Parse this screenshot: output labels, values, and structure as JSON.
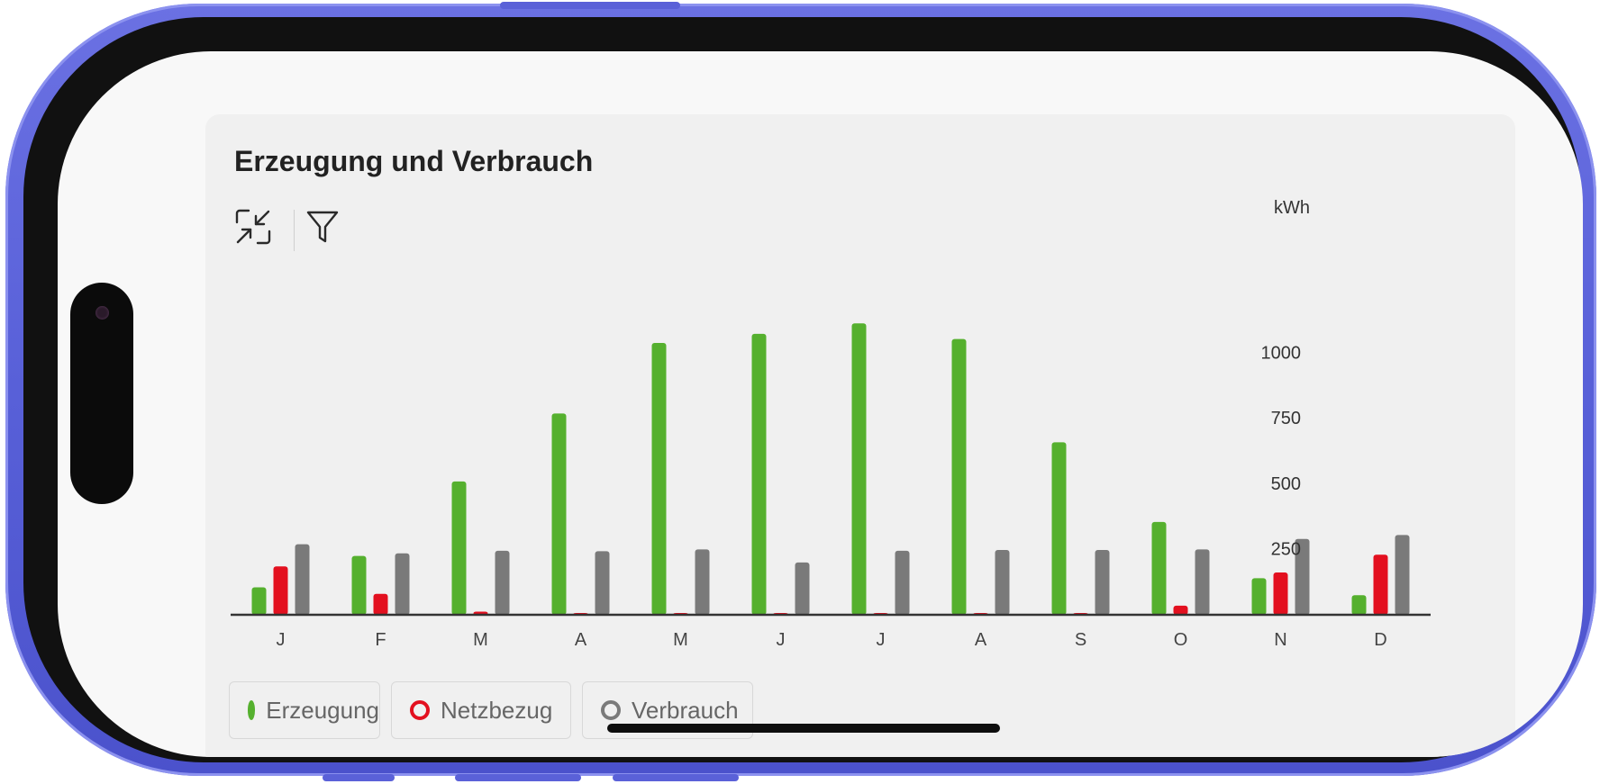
{
  "card": {
    "title": "Erzeugung und Verbrauch"
  },
  "toolbar": {
    "collapse_icon": "collapse-arrows-icon",
    "filter_icon": "filter-icon"
  },
  "legend": [
    {
      "label": "Erzeugung",
      "color": "#55b02e"
    },
    {
      "label": "Netzbezug",
      "color": "#e3101f"
    },
    {
      "label": "Verbrauch",
      "color": "#7a7a7a"
    }
  ],
  "chart_data": {
    "type": "bar",
    "ylabel": "kWh",
    "ylim": [
      0,
      1150
    ],
    "yticks": [
      250,
      500,
      750,
      1000
    ],
    "y_axis_position": "right",
    "grid": false,
    "legend_position": "bottom-left",
    "categories": [
      "J",
      "F",
      "M",
      "A",
      "M",
      "J",
      "J",
      "A",
      "S",
      "O",
      "N",
      "D"
    ],
    "series": [
      {
        "name": "Erzeugung",
        "color": "#55b02e",
        "values": [
          105,
          225,
          510,
          770,
          1040,
          1075,
          1115,
          1055,
          660,
          355,
          140,
          75
        ]
      },
      {
        "name": "Netzbezug",
        "color": "#e3101f",
        "values": [
          185,
          80,
          12,
          6,
          3,
          3,
          3,
          3,
          3,
          35,
          162,
          230
        ]
      },
      {
        "name": "Verbrauch",
        "color": "#7a7a7a",
        "values": [
          270,
          235,
          245,
          243,
          250,
          200,
          245,
          248,
          248,
          250,
          290,
          305
        ]
      }
    ]
  }
}
